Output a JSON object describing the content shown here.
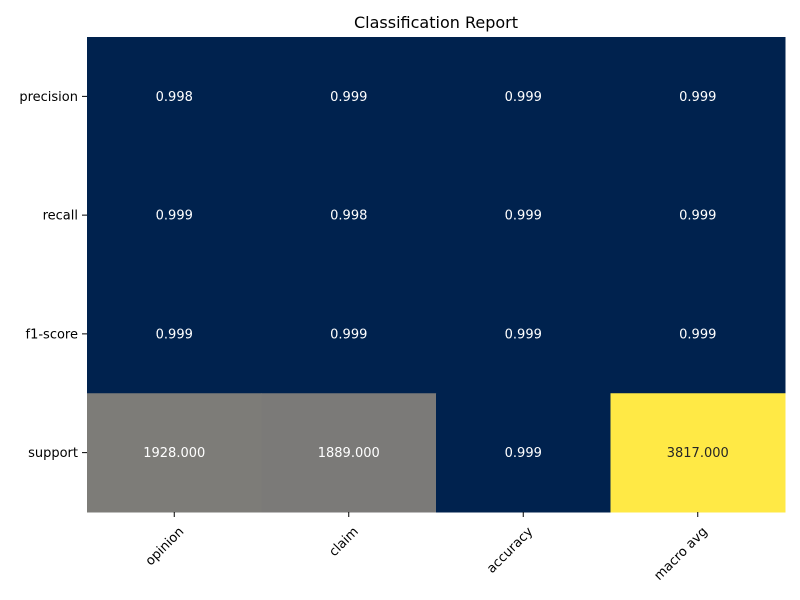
{
  "chart_data": {
    "type": "heatmap",
    "title": "Classification Report",
    "xlabel": "",
    "ylabel": "",
    "columns": [
      "opinion",
      "claim",
      "accuracy",
      "macro avg"
    ],
    "rows": [
      "precision",
      "recall",
      "f1-score",
      "support"
    ],
    "values": [
      [
        0.998,
        0.999,
        0.999,
        0.999
      ],
      [
        0.999,
        0.998,
        0.999,
        0.999
      ],
      [
        0.999,
        0.999,
        0.999,
        0.999
      ],
      [
        1928.0,
        1889.0,
        0.999,
        3817.0
      ]
    ],
    "labels": [
      [
        "0.998",
        "0.999",
        "0.999",
        "0.999"
      ],
      [
        "0.999",
        "0.998",
        "0.999",
        "0.999"
      ],
      [
        "0.999",
        "0.999",
        "0.999",
        "0.999"
      ],
      [
        "1928.000",
        "1889.000",
        "0.999",
        "3817.000"
      ]
    ],
    "colormap": "cividis",
    "colorbar": false,
    "vmin": 0.998,
    "vmax": 3817.0
  }
}
